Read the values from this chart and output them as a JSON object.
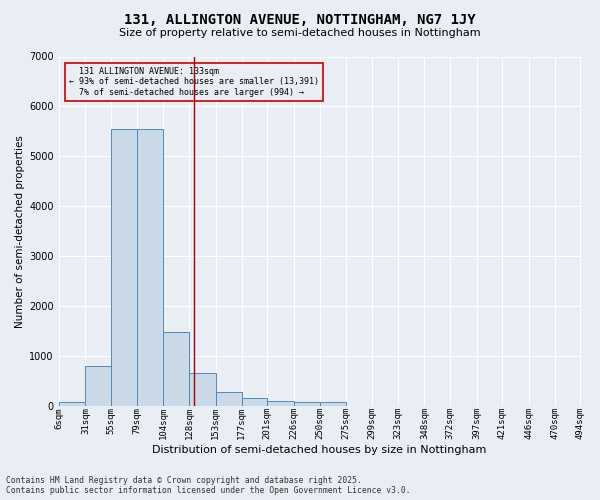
{
  "title": "131, ALLINGTON AVENUE, NOTTINGHAM, NG7 1JY",
  "subtitle": "Size of property relative to semi-detached houses in Nottingham",
  "xlabel": "Distribution of semi-detached houses by size in Nottingham",
  "ylabel": "Number of semi-detached properties",
  "footer_line1": "Contains HM Land Registry data © Crown copyright and database right 2025.",
  "footer_line2": "Contains public sector information licensed under the Open Government Licence v3.0.",
  "property_size": 133,
  "property_label": "131 ALLINGTON AVENUE: 133sqm",
  "pct_smaller": 93,
  "count_smaller": 13391,
  "pct_larger": 7,
  "count_larger": 994,
  "bar_edges": [
    6,
    31,
    55,
    79,
    104,
    128,
    153,
    177,
    201,
    226,
    250,
    275,
    299,
    323,
    348,
    372,
    397,
    421,
    446,
    470,
    494
  ],
  "bar_heights": [
    70,
    800,
    5550,
    5550,
    1480,
    660,
    280,
    155,
    95,
    70,
    70,
    0,
    0,
    0,
    0,
    0,
    0,
    0,
    0,
    0
  ],
  "bar_color": "#c9d9e8",
  "bar_edge_color": "#5588bb",
  "vline_color": "#aa0000",
  "bg_color": "#e8eef4",
  "annotation_box_color": "#cc0000",
  "grid_color": "#ffffff",
  "tick_labels": [
    "6sqm",
    "31sqm",
    "55sqm",
    "79sqm",
    "104sqm",
    "128sqm",
    "153sqm",
    "177sqm",
    "201sqm",
    "226sqm",
    "250sqm",
    "275sqm",
    "299sqm",
    "323sqm",
    "348sqm",
    "372sqm",
    "397sqm",
    "421sqm",
    "446sqm",
    "470sqm",
    "494sqm"
  ],
  "ylim": [
    0,
    7000
  ],
  "yticks": [
    0,
    1000,
    2000,
    3000,
    4000,
    5000,
    6000,
    7000
  ],
  "title_fontsize": 10,
  "subtitle_fontsize": 8,
  "axis_label_fontsize": 7.5,
  "tick_fontsize": 6.5,
  "footer_fontsize": 5.8
}
